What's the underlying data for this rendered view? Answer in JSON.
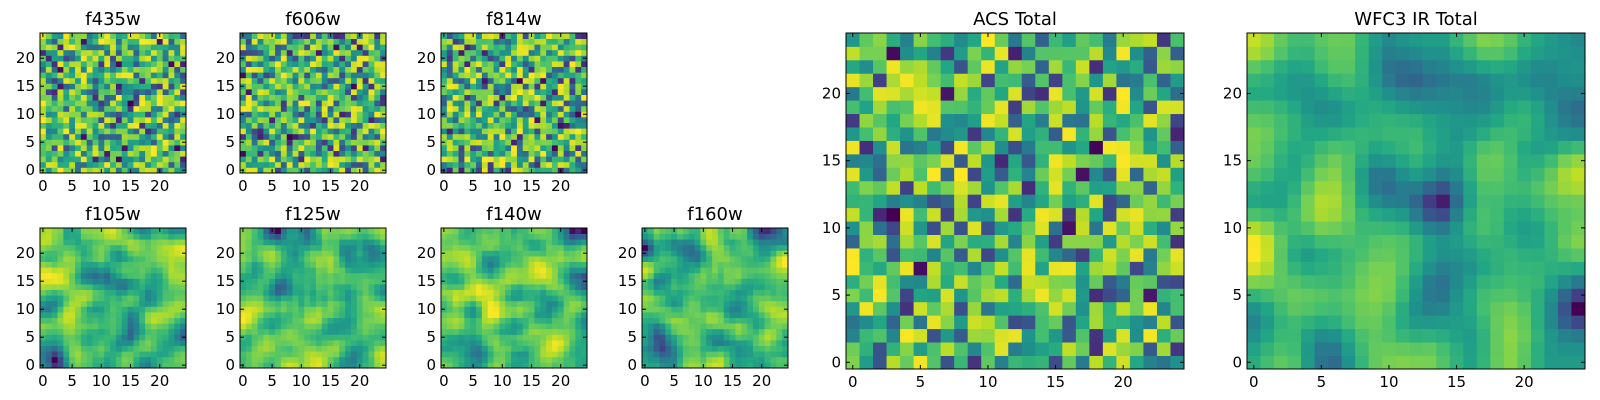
{
  "chart_data": {
    "type": "heatmap",
    "colormap": "viridis",
    "grid": 25,
    "panels": [
      {
        "title": "f435w",
        "xticks": [
          "0",
          "5",
          "10",
          "15",
          "20"
        ],
        "yticks": [
          "0",
          "5",
          "10",
          "15",
          "20"
        ],
        "smoothness": 0
      },
      {
        "title": "f606w",
        "xticks": [
          "0",
          "5",
          "10",
          "15",
          "20"
        ],
        "yticks": [
          "0",
          "5",
          "10",
          "15",
          "20"
        ],
        "smoothness": 0
      },
      {
        "title": "f814w",
        "xticks": [
          "0",
          "5",
          "10",
          "15",
          "20"
        ],
        "yticks": [
          "0",
          "5",
          "10",
          "15",
          "20"
        ],
        "smoothness": 0
      },
      {
        "title": "f105w",
        "xticks": [
          "0",
          "5",
          "10",
          "15",
          "20"
        ],
        "yticks": [
          "0",
          "5",
          "10",
          "15",
          "20"
        ],
        "smoothness": 2
      },
      {
        "title": "f125w",
        "xticks": [
          "0",
          "5",
          "10",
          "15",
          "20"
        ],
        "yticks": [
          "0",
          "5",
          "10",
          "15",
          "20"
        ],
        "smoothness": 2
      },
      {
        "title": "f140w",
        "xticks": [
          "0",
          "5",
          "10",
          "15",
          "20"
        ],
        "yticks": [
          "0",
          "5",
          "10",
          "15",
          "20"
        ],
        "smoothness": 2
      },
      {
        "title": "f160w",
        "xticks": [
          "0",
          "5",
          "10",
          "15",
          "20"
        ],
        "yticks": [
          "0",
          "5",
          "10",
          "15",
          "20"
        ],
        "smoothness": 2
      },
      {
        "title": "ACS Total",
        "xticks": [
          "0",
          "5",
          "10",
          "15",
          "20"
        ],
        "yticks": [
          "0",
          "5",
          "10",
          "15",
          "20"
        ],
        "smoothness": 0
      },
      {
        "title": "WFC3 IR Total",
        "xticks": [
          "0",
          "5",
          "10",
          "15",
          "20"
        ],
        "yticks": [
          "0",
          "5",
          "10",
          "15",
          "20"
        ],
        "smoothness": 3
      }
    ]
  }
}
